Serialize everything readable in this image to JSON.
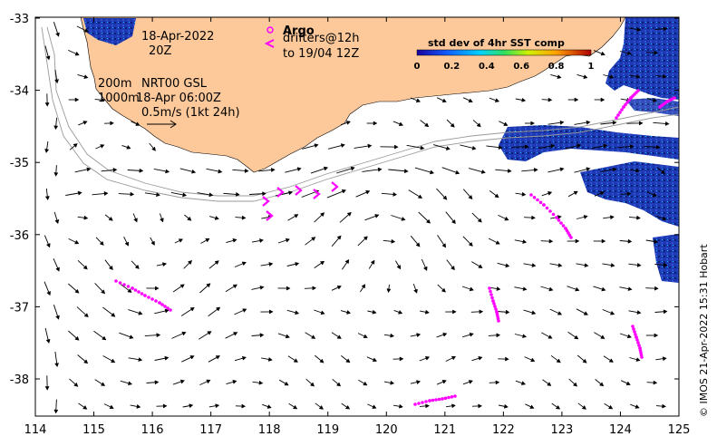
{
  "map": {
    "date_line1": "18-Apr-2022",
    "date_line2": "20Z",
    "argo_label": "Argo",
    "drifters_label": "drifters@12h",
    "drifters_range": "to 19/04 12Z",
    "depth_line1": "200m",
    "depth_line2": "1000m",
    "product_line1": "NRT00 GSL",
    "product_line2": "18-Apr 06:00Z",
    "scale_label": "0.5m/s (1kt 24h)",
    "colorbar_title": "std dev of 4hr SST comp",
    "colorbar_ticks": [
      "0",
      "0.2",
      "0.4",
      "0.6",
      "0.8",
      "1"
    ],
    "x_ticks": [
      "114",
      "115",
      "116",
      "117",
      "118",
      "119",
      "120",
      "121",
      "122",
      "123",
      "124",
      "125"
    ],
    "y_ticks": [
      "-33",
      "-34",
      "-35",
      "-36",
      "-37",
      "-38"
    ],
    "credit": "© IMOS 21-Apr-2022 15:31 Hobart",
    "colors": {
      "land": "#fdc99a",
      "argo": "#ff00ff",
      "sst_high": "#1a3fb0",
      "frame": "#000000"
    }
  }
}
